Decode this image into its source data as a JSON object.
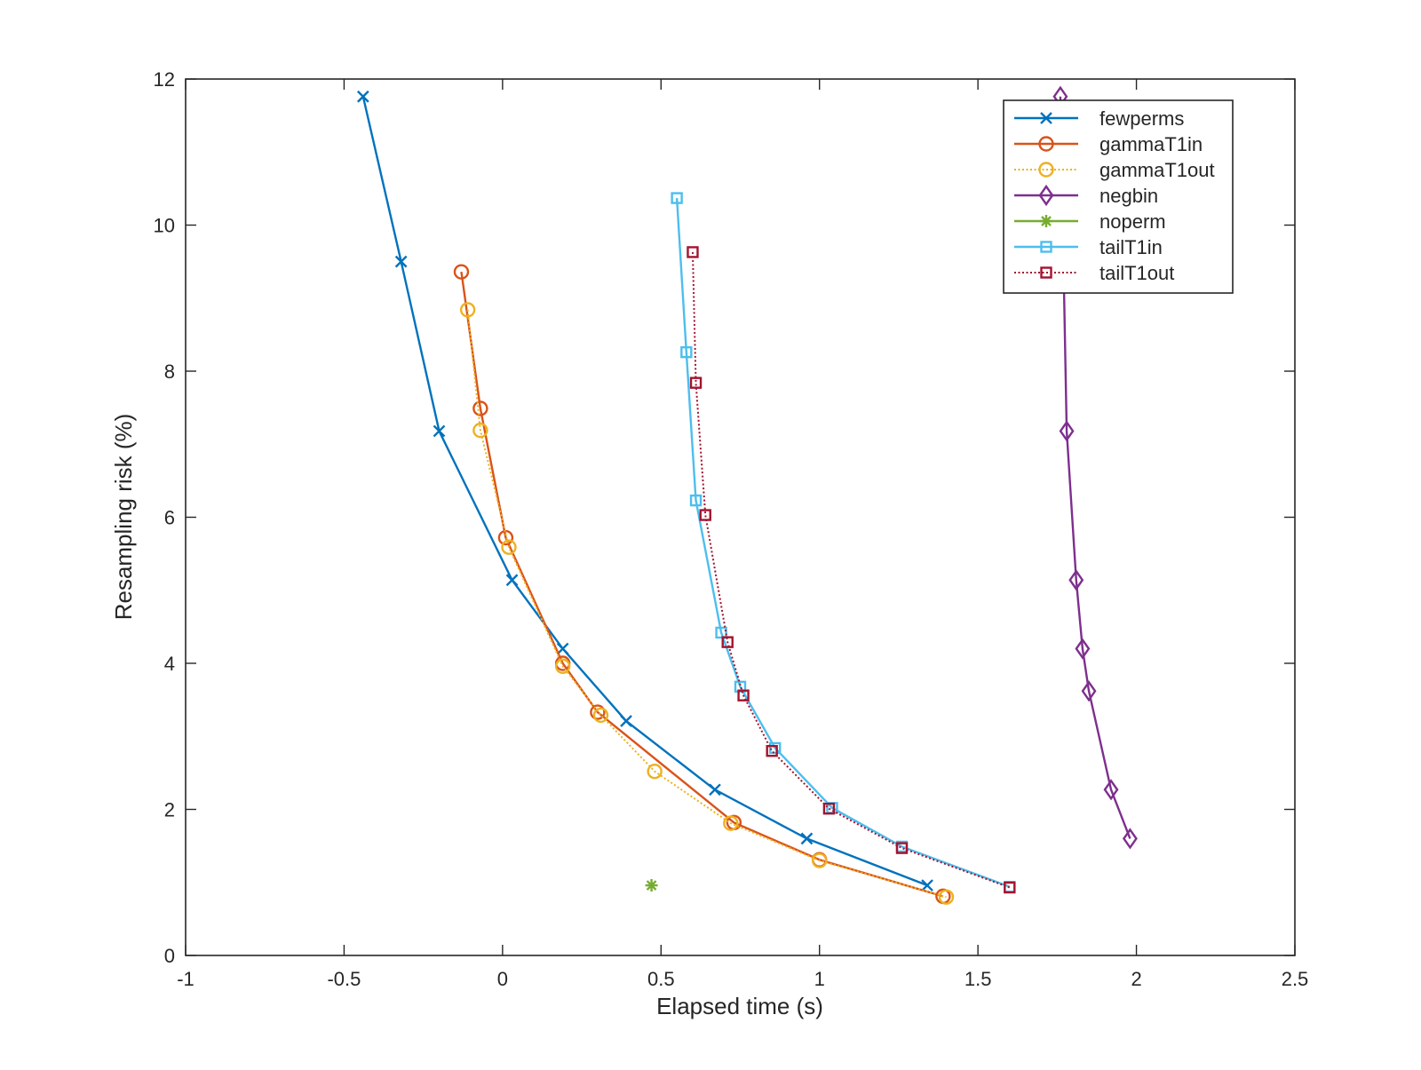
{
  "chart_data": {
    "type": "line",
    "xlabel": "Elapsed time (s)",
    "ylabel": "Resampling risk (%)",
    "xlim": [
      -1,
      2.5
    ],
    "ylim": [
      0,
      12
    ],
    "xticks": [
      -1,
      -0.5,
      0,
      0.5,
      1,
      1.5,
      2,
      2.5
    ],
    "xtick_labels": [
      "-1",
      "-0.5",
      "0",
      "0.5",
      "1",
      "1.5",
      "2",
      "2.5"
    ],
    "yticks": [
      0,
      2,
      4,
      6,
      8,
      10,
      12
    ],
    "ytick_labels": [
      "0",
      "2",
      "4",
      "6",
      "8",
      "10",
      "12"
    ],
    "grid": false,
    "legend_position": "top-right",
    "series": [
      {
        "name": "fewperms",
        "color": "#0072BD",
        "marker": "x",
        "linestyle": "solid",
        "x": [
          -0.44,
          -0.32,
          -0.2,
          0.03,
          0.19,
          0.39,
          0.67,
          0.96,
          1.34
        ],
        "y": [
          11.76,
          9.5,
          7.18,
          5.14,
          4.2,
          3.21,
          2.27,
          1.6,
          0.96
        ]
      },
      {
        "name": "gammaT1in",
        "color": "#D95319",
        "marker": "o",
        "linestyle": "solid",
        "x": [
          -0.13,
          -0.07,
          0.01,
          0.19,
          0.3,
          0.73,
          1.0,
          1.39
        ],
        "y": [
          9.36,
          7.49,
          5.72,
          4.0,
          3.33,
          1.82,
          1.31,
          0.81
        ]
      },
      {
        "name": "gammaT1out",
        "color": "#EDB120",
        "marker": "o",
        "linestyle": "dotted",
        "x": [
          -0.11,
          -0.07,
          0.02,
          0.19,
          0.31,
          0.48,
          0.72,
          1.0,
          1.4
        ],
        "y": [
          8.84,
          7.19,
          5.59,
          3.96,
          3.29,
          2.52,
          1.81,
          1.3,
          0.8
        ]
      },
      {
        "name": "negbin",
        "color": "#7E2F8E",
        "marker": "diamond",
        "linestyle": "solid",
        "x": [
          1.76,
          1.78,
          1.81,
          1.83,
          1.85,
          1.92,
          1.98
        ],
        "y": [
          11.76,
          7.18,
          5.14,
          4.2,
          3.62,
          2.27,
          1.6
        ]
      },
      {
        "name": "noperm",
        "color": "#77AC30",
        "marker": "asterisk",
        "linestyle": "none",
        "x": [
          0.47
        ],
        "y": [
          0.96
        ]
      },
      {
        "name": "tailT1in",
        "color": "#4DBEEE",
        "marker": "square",
        "linestyle": "solid",
        "x": [
          0.55,
          0.58,
          0.61,
          0.69,
          0.75,
          0.86,
          1.04,
          1.26,
          1.6
        ],
        "y": [
          10.37,
          8.26,
          6.23,
          4.42,
          3.68,
          2.84,
          2.02,
          1.49,
          0.94
        ]
      },
      {
        "name": "tailT1out",
        "color": "#A2142F",
        "marker": "square",
        "linestyle": "dotted",
        "x": [
          0.6,
          0.61,
          0.64,
          0.71,
          0.76,
          0.85,
          1.03,
          1.26,
          1.6
        ],
        "y": [
          9.63,
          7.84,
          6.03,
          4.29,
          3.56,
          2.8,
          2.01,
          1.47,
          0.93
        ]
      }
    ]
  }
}
